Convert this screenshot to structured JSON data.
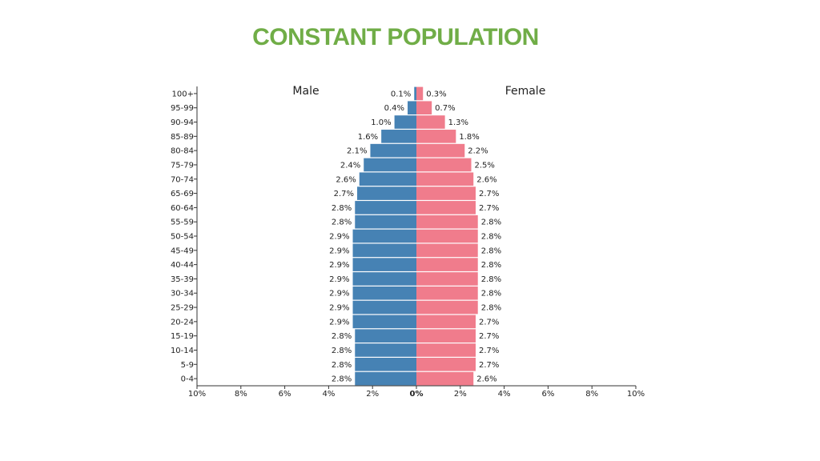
{
  "slide": {
    "title": "CONSTANT POPULATION",
    "title_color": "#70ad47"
  },
  "chart_data": {
    "type": "bar",
    "orientation": "horizontal",
    "style": "population-pyramid",
    "categories": [
      "100+",
      "95-99",
      "90-94",
      "85-89",
      "80-84",
      "75-79",
      "70-74",
      "65-69",
      "60-64",
      "55-59",
      "50-54",
      "45-49",
      "40-44",
      "35-39",
      "30-34",
      "25-29",
      "20-24",
      "15-19",
      "10-14",
      "5-9",
      "0-4"
    ],
    "series": [
      {
        "name": "Male",
        "color": "#4682b4",
        "values": [
          0.1,
          0.4,
          1.0,
          1.6,
          2.1,
          2.4,
          2.6,
          2.7,
          2.8,
          2.8,
          2.9,
          2.9,
          2.9,
          2.9,
          2.9,
          2.9,
          2.9,
          2.8,
          2.8,
          2.8,
          2.8
        ],
        "labels": [
          "0.1%",
          "0.4%",
          "1.0%",
          "1.6%",
          "2.1%",
          "2.4%",
          "2.6%",
          "2.7%",
          "2.8%",
          "2.8%",
          "2.9%",
          "2.9%",
          "2.9%",
          "2.9%",
          "2.9%",
          "2.9%",
          "2.9%",
          "2.8%",
          "2.8%",
          "2.8%",
          "2.8%"
        ]
      },
      {
        "name": "Female",
        "color": "#f07c8c",
        "values": [
          0.3,
          0.7,
          1.3,
          1.8,
          2.2,
          2.5,
          2.6,
          2.7,
          2.7,
          2.8,
          2.8,
          2.8,
          2.8,
          2.8,
          2.8,
          2.8,
          2.7,
          2.7,
          2.7,
          2.7,
          2.6
        ],
        "labels": [
          "0.3%",
          "0.7%",
          "1.3%",
          "1.8%",
          "2.2%",
          "2.5%",
          "2.6%",
          "2.7%",
          "2.7%",
          "2.8%",
          "2.8%",
          "2.8%",
          "2.8%",
          "2.8%",
          "2.8%",
          "2.8%",
          "2.7%",
          "2.7%",
          "2.7%",
          "2.7%",
          "2.6%"
        ]
      }
    ],
    "xlim": [
      -10,
      10
    ],
    "x_ticks": [
      -10,
      -8,
      -6,
      -4,
      -2,
      0,
      2,
      4,
      6,
      8,
      10
    ],
    "x_tick_labels": [
      "10%",
      "8%",
      "6%",
      "4%",
      "2%",
      "0%",
      "2%",
      "4%",
      "6%",
      "8%",
      "10%"
    ],
    "grid": false,
    "side_titles": [
      "Male",
      "Female"
    ]
  }
}
